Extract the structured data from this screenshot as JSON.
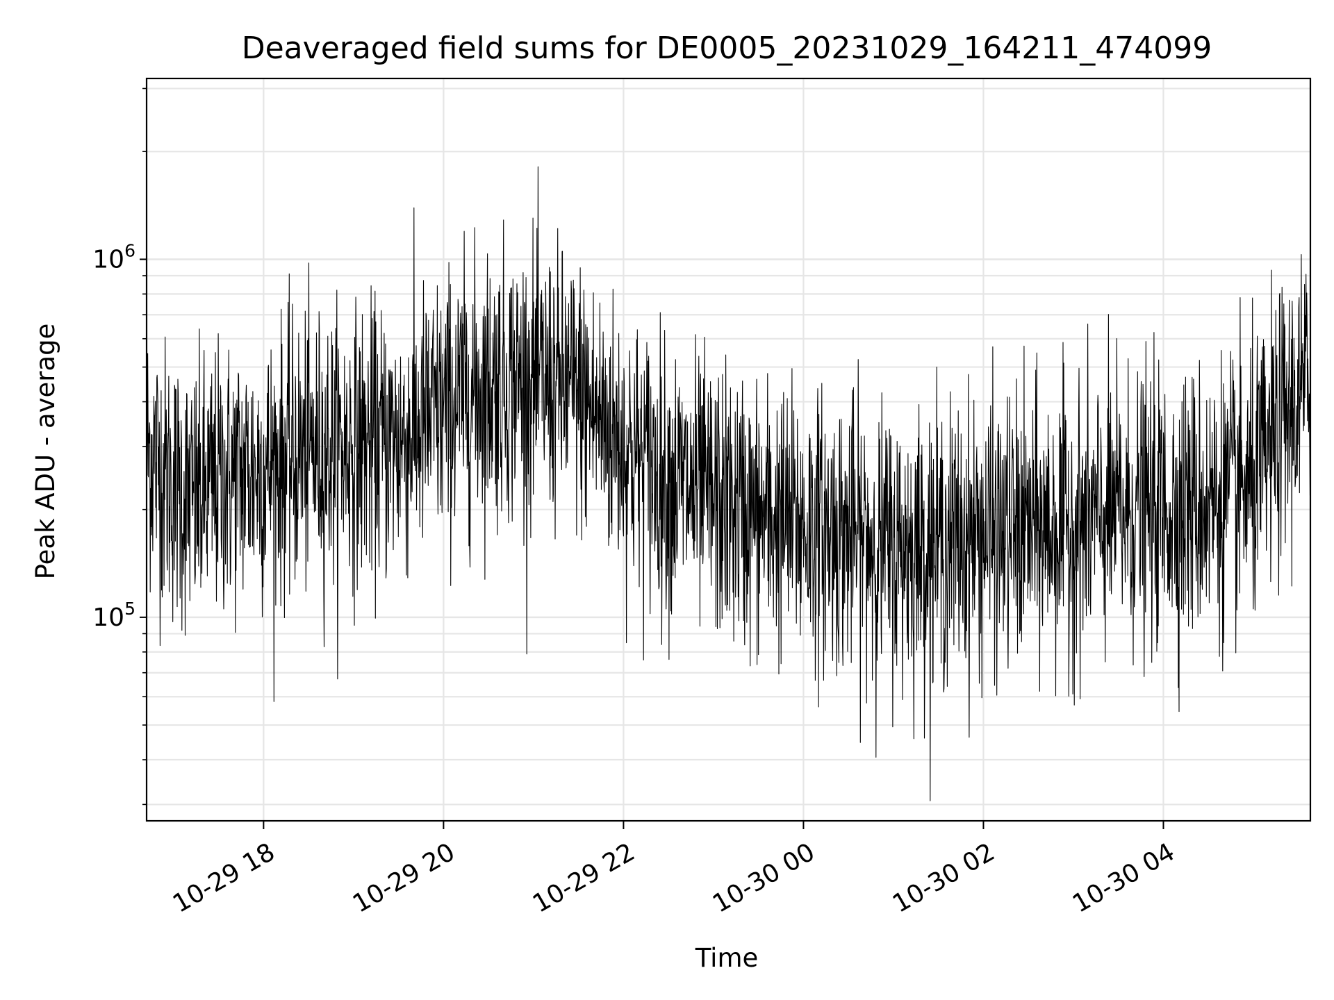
{
  "chart_data": {
    "type": "line",
    "title": "Deaveraged field sums for DE0005_20231029_164211_474099",
    "xlabel": "Time",
    "ylabel": "Peak ADU - average",
    "yscale": "log",
    "xlim": [
      "2023-10-29 16:42",
      "2023-10-30 05:38"
    ],
    "ylim": [
      27000,
      3200000
    ],
    "grid": true,
    "line_color": "#000000",
    "x_ticks": [
      {
        "value": "2023-10-29 18:00",
        "label": "10-29 18"
      },
      {
        "value": "2023-10-29 20:00",
        "label": "10-29 20"
      },
      {
        "value": "2023-10-29 22:00",
        "label": "10-29 22"
      },
      {
        "value": "2023-10-30 00:00",
        "label": "10-30 00"
      },
      {
        "value": "2023-10-30 02:00",
        "label": "10-30 02"
      },
      {
        "value": "2023-10-30 04:00",
        "label": "10-30 04"
      }
    ],
    "y_ticks": [
      {
        "value": 100000,
        "base": "10",
        "exp": "5"
      },
      {
        "value": 1000000,
        "base": "10",
        "exp": "6"
      }
    ],
    "series": [
      {
        "values": [
          {
            "x": "2023-10-29 16:42",
            "y": 300000
          },
          {
            "x": "2023-10-29 17:00",
            "y": 230000
          },
          {
            "x": "2023-10-29 17:15",
            "y": 210000
          },
          {
            "x": "2023-10-29 17:30",
            "y": 240000
          },
          {
            "x": "2023-10-29 18:00",
            "y": 260000
          },
          {
            "x": "2023-10-29 18:30",
            "y": 290000
          },
          {
            "x": "2023-10-29 19:00",
            "y": 300000
          },
          {
            "x": "2023-10-29 19:30",
            "y": 310000
          },
          {
            "x": "2023-10-29 20:00",
            "y": 380000
          },
          {
            "x": "2023-10-29 20:30",
            "y": 450000
          },
          {
            "x": "2023-10-29 21:00",
            "y": 460000
          },
          {
            "x": "2023-10-29 21:30",
            "y": 420000
          },
          {
            "x": "2023-10-29 22:00",
            "y": 300000
          },
          {
            "x": "2023-10-29 22:30",
            "y": 240000
          },
          {
            "x": "2023-10-29 23:00",
            "y": 210000
          },
          {
            "x": "2023-10-29 23:30",
            "y": 190000
          },
          {
            "x": "2023-10-30 00:00",
            "y": 180000
          },
          {
            "x": "2023-10-30 00:30",
            "y": 170000
          },
          {
            "x": "2023-10-30 01:00",
            "y": 155000
          },
          {
            "x": "2023-10-30 01:30",
            "y": 160000
          },
          {
            "x": "2023-10-30 02:00",
            "y": 170000
          },
          {
            "x": "2023-10-30 02:30",
            "y": 175000
          },
          {
            "x": "2023-10-30 03:00",
            "y": 180000
          },
          {
            "x": "2023-10-30 03:30",
            "y": 195000
          },
          {
            "x": "2023-10-30 04:00",
            "y": 200000
          },
          {
            "x": "2023-10-30 04:30",
            "y": 210000
          },
          {
            "x": "2023-10-30 05:00",
            "y": 230000
          },
          {
            "x": "2023-10-30 05:20",
            "y": 350000
          },
          {
            "x": "2023-10-30 05:38",
            "y": 450000
          }
        ]
      }
    ]
  }
}
